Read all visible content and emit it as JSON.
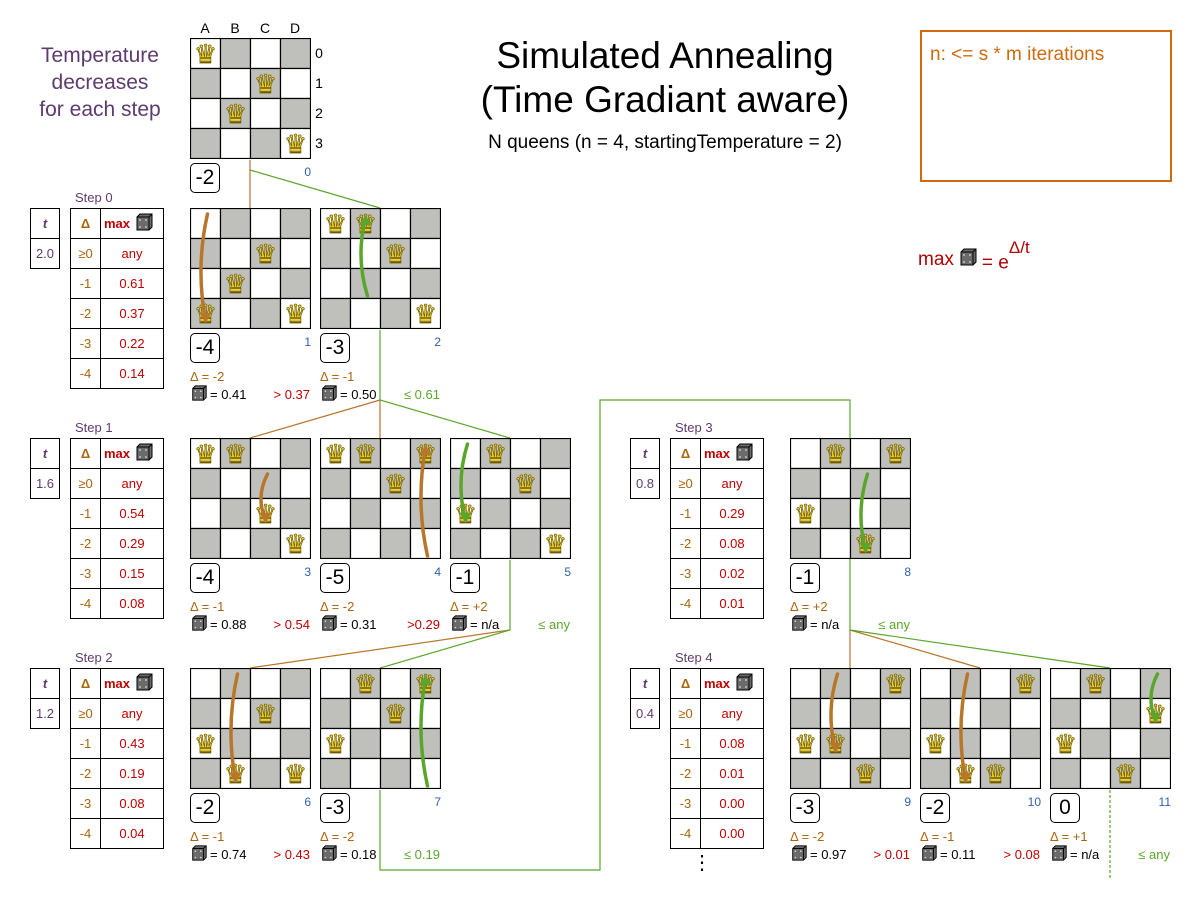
{
  "title_line1": "Simulated Annealing",
  "title_line2": "(Time Gradiant aware)",
  "subtitle": "N queens (n = 4, startingTemperature = 2)",
  "note_lines": [
    "Temperature",
    "decreases",
    "for each step"
  ],
  "iterations_note": "n: <= s * m iterations",
  "formula": {
    "prefix": "max",
    "equals": "= e",
    "exponent": "Δ/t"
  },
  "column_labels": [
    "A",
    "B",
    "C",
    "D"
  ],
  "row_labels": [
    "0",
    "1",
    "2",
    "3"
  ],
  "colors": {
    "accepted": "#5aa62a",
    "rejected": "#b8762a",
    "max": "#c00000",
    "delta": "#a8660e",
    "step": "#5e3b6e",
    "board_id": "#3060a8",
    "dark_cell": "#bfc0bb",
    "iterations_box": "#d06a10"
  },
  "icons": {
    "queen": "queen-icon",
    "dice": "dice-icon"
  },
  "table_headers": {
    "t": "t",
    "delta": "Δ",
    "max": "max"
  },
  "start_board": {
    "id": "0",
    "score": "-2",
    "queens": [
      0,
      2,
      1,
      3
    ]
  },
  "steps": [
    {
      "label": "Step 0",
      "t": "2.0",
      "rows": [
        [
          "≥0",
          "any"
        ],
        [
          "-1",
          "0.61"
        ],
        [
          "-2",
          "0.37"
        ],
        [
          "-3",
          "0.22"
        ],
        [
          "-4",
          "0.14"
        ]
      ],
      "boards": [
        {
          "id": "1",
          "score": "-4",
          "queens": [
            3,
            2,
            1,
            3
          ],
          "arrow": {
            "col": 0,
            "from": 0,
            "to": 3,
            "accepted": false
          },
          "delta": "Δ = -2",
          "dice": "= 0.41",
          "compare": "> 0.37",
          "accepted": false
        },
        {
          "id": "2",
          "score": "-3",
          "queens": [
            0,
            0,
            1,
            3
          ],
          "arrow": {
            "col": 1,
            "from": 2,
            "to": 0,
            "accepted": true
          },
          "delta": "Δ = -1",
          "dice": "= 0.50",
          "compare": "≤ 0.61",
          "accepted": true
        }
      ]
    },
    {
      "label": "Step 1",
      "t": "1.6",
      "rows": [
        [
          "≥0",
          "any"
        ],
        [
          "-1",
          "0.54"
        ],
        [
          "-2",
          "0.29"
        ],
        [
          "-3",
          "0.15"
        ],
        [
          "-4",
          "0.08"
        ]
      ],
      "boards": [
        {
          "id": "3",
          "score": "-4",
          "queens": [
            0,
            0,
            2,
            3
          ],
          "arrow": {
            "col": 2,
            "from": 1,
            "to": 2,
            "accepted": false
          },
          "delta": "Δ = -1",
          "dice": "= 0.88",
          "compare": "> 0.54",
          "accepted": false
        },
        {
          "id": "4",
          "score": "-5",
          "queens": [
            0,
            0,
            1,
            0
          ],
          "arrow": {
            "col": 3,
            "from": 3,
            "to": 0,
            "accepted": false
          },
          "delta": "Δ = -2",
          "dice": "= 0.31",
          "compare": ">0.29",
          "accepted": false
        },
        {
          "id": "5",
          "score": "-1",
          "queens": [
            2,
            0,
            1,
            3
          ],
          "arrow": {
            "col": 0,
            "from": 0,
            "to": 2,
            "accepted": true
          },
          "delta": "Δ = +2",
          "dice": "= n/a",
          "compare": "≤ any",
          "accepted": true
        }
      ]
    },
    {
      "label": "Step 2",
      "t": "1.2",
      "rows": [
        [
          "≥0",
          "any"
        ],
        [
          "-1",
          "0.43"
        ],
        [
          "-2",
          "0.19"
        ],
        [
          "-3",
          "0.08"
        ],
        [
          "-4",
          "0.04"
        ]
      ],
      "boards": [
        {
          "id": "6",
          "score": "-2",
          "queens": [
            2,
            3,
            1,
            3
          ],
          "arrow": {
            "col": 1,
            "from": 0,
            "to": 3,
            "accepted": false
          },
          "delta": "Δ = -1",
          "dice": "= 0.74",
          "compare": "> 0.43",
          "accepted": false
        },
        {
          "id": "7",
          "score": "-3",
          "queens": [
            2,
            0,
            1,
            0
          ],
          "arrow": {
            "col": 3,
            "from": 3,
            "to": 0,
            "accepted": true
          },
          "delta": "Δ = -2",
          "dice": "= 0.18",
          "compare": "≤ 0.19",
          "accepted": true
        }
      ]
    },
    {
      "label": "Step 3",
      "t": "0.8",
      "rows": [
        [
          "≥0",
          "any"
        ],
        [
          "-1",
          "0.29"
        ],
        [
          "-2",
          "0.08"
        ],
        [
          "-3",
          "0.02"
        ],
        [
          "-4",
          "0.01"
        ]
      ],
      "boards": [
        {
          "id": "8",
          "score": "-1",
          "queens": [
            2,
            0,
            3,
            0
          ],
          "arrow": {
            "col": 2,
            "from": 1,
            "to": 3,
            "accepted": true
          },
          "delta": "Δ = +2",
          "dice": "= n/a",
          "compare": "≤ any",
          "accepted": true
        }
      ]
    },
    {
      "label": "Step 4",
      "t": "0.4",
      "rows": [
        [
          "≥0",
          "any"
        ],
        [
          "-1",
          "0.08"
        ],
        [
          "-2",
          "0.01"
        ],
        [
          "-3",
          "0.00"
        ],
        [
          "-4",
          "0.00"
        ]
      ],
      "boards": [
        {
          "id": "9",
          "score": "-3",
          "queens": [
            2,
            2,
            3,
            0
          ],
          "arrow": {
            "col": 1,
            "from": 0,
            "to": 2,
            "accepted": false
          },
          "delta": "Δ = -2",
          "dice": "= 0.97",
          "compare": "> 0.01",
          "accepted": false
        },
        {
          "id": "10",
          "score": "-2",
          "queens": [
            2,
            3,
            3,
            0
          ],
          "arrow": {
            "col": 1,
            "from": 0,
            "to": 3,
            "accepted": false
          },
          "delta": "Δ = -1",
          "dice": "= 0.11",
          "compare": "> 0.08",
          "accepted": false
        },
        {
          "id": "11",
          "score": "0",
          "queens": [
            2,
            0,
            3,
            1
          ],
          "arrow": {
            "col": 3,
            "from": 0,
            "to": 1,
            "accepted": true
          },
          "delta": "Δ = +1",
          "dice": "= n/a",
          "compare": "≤ any",
          "accepted": true
        }
      ]
    }
  ],
  "continuation": "⋮"
}
